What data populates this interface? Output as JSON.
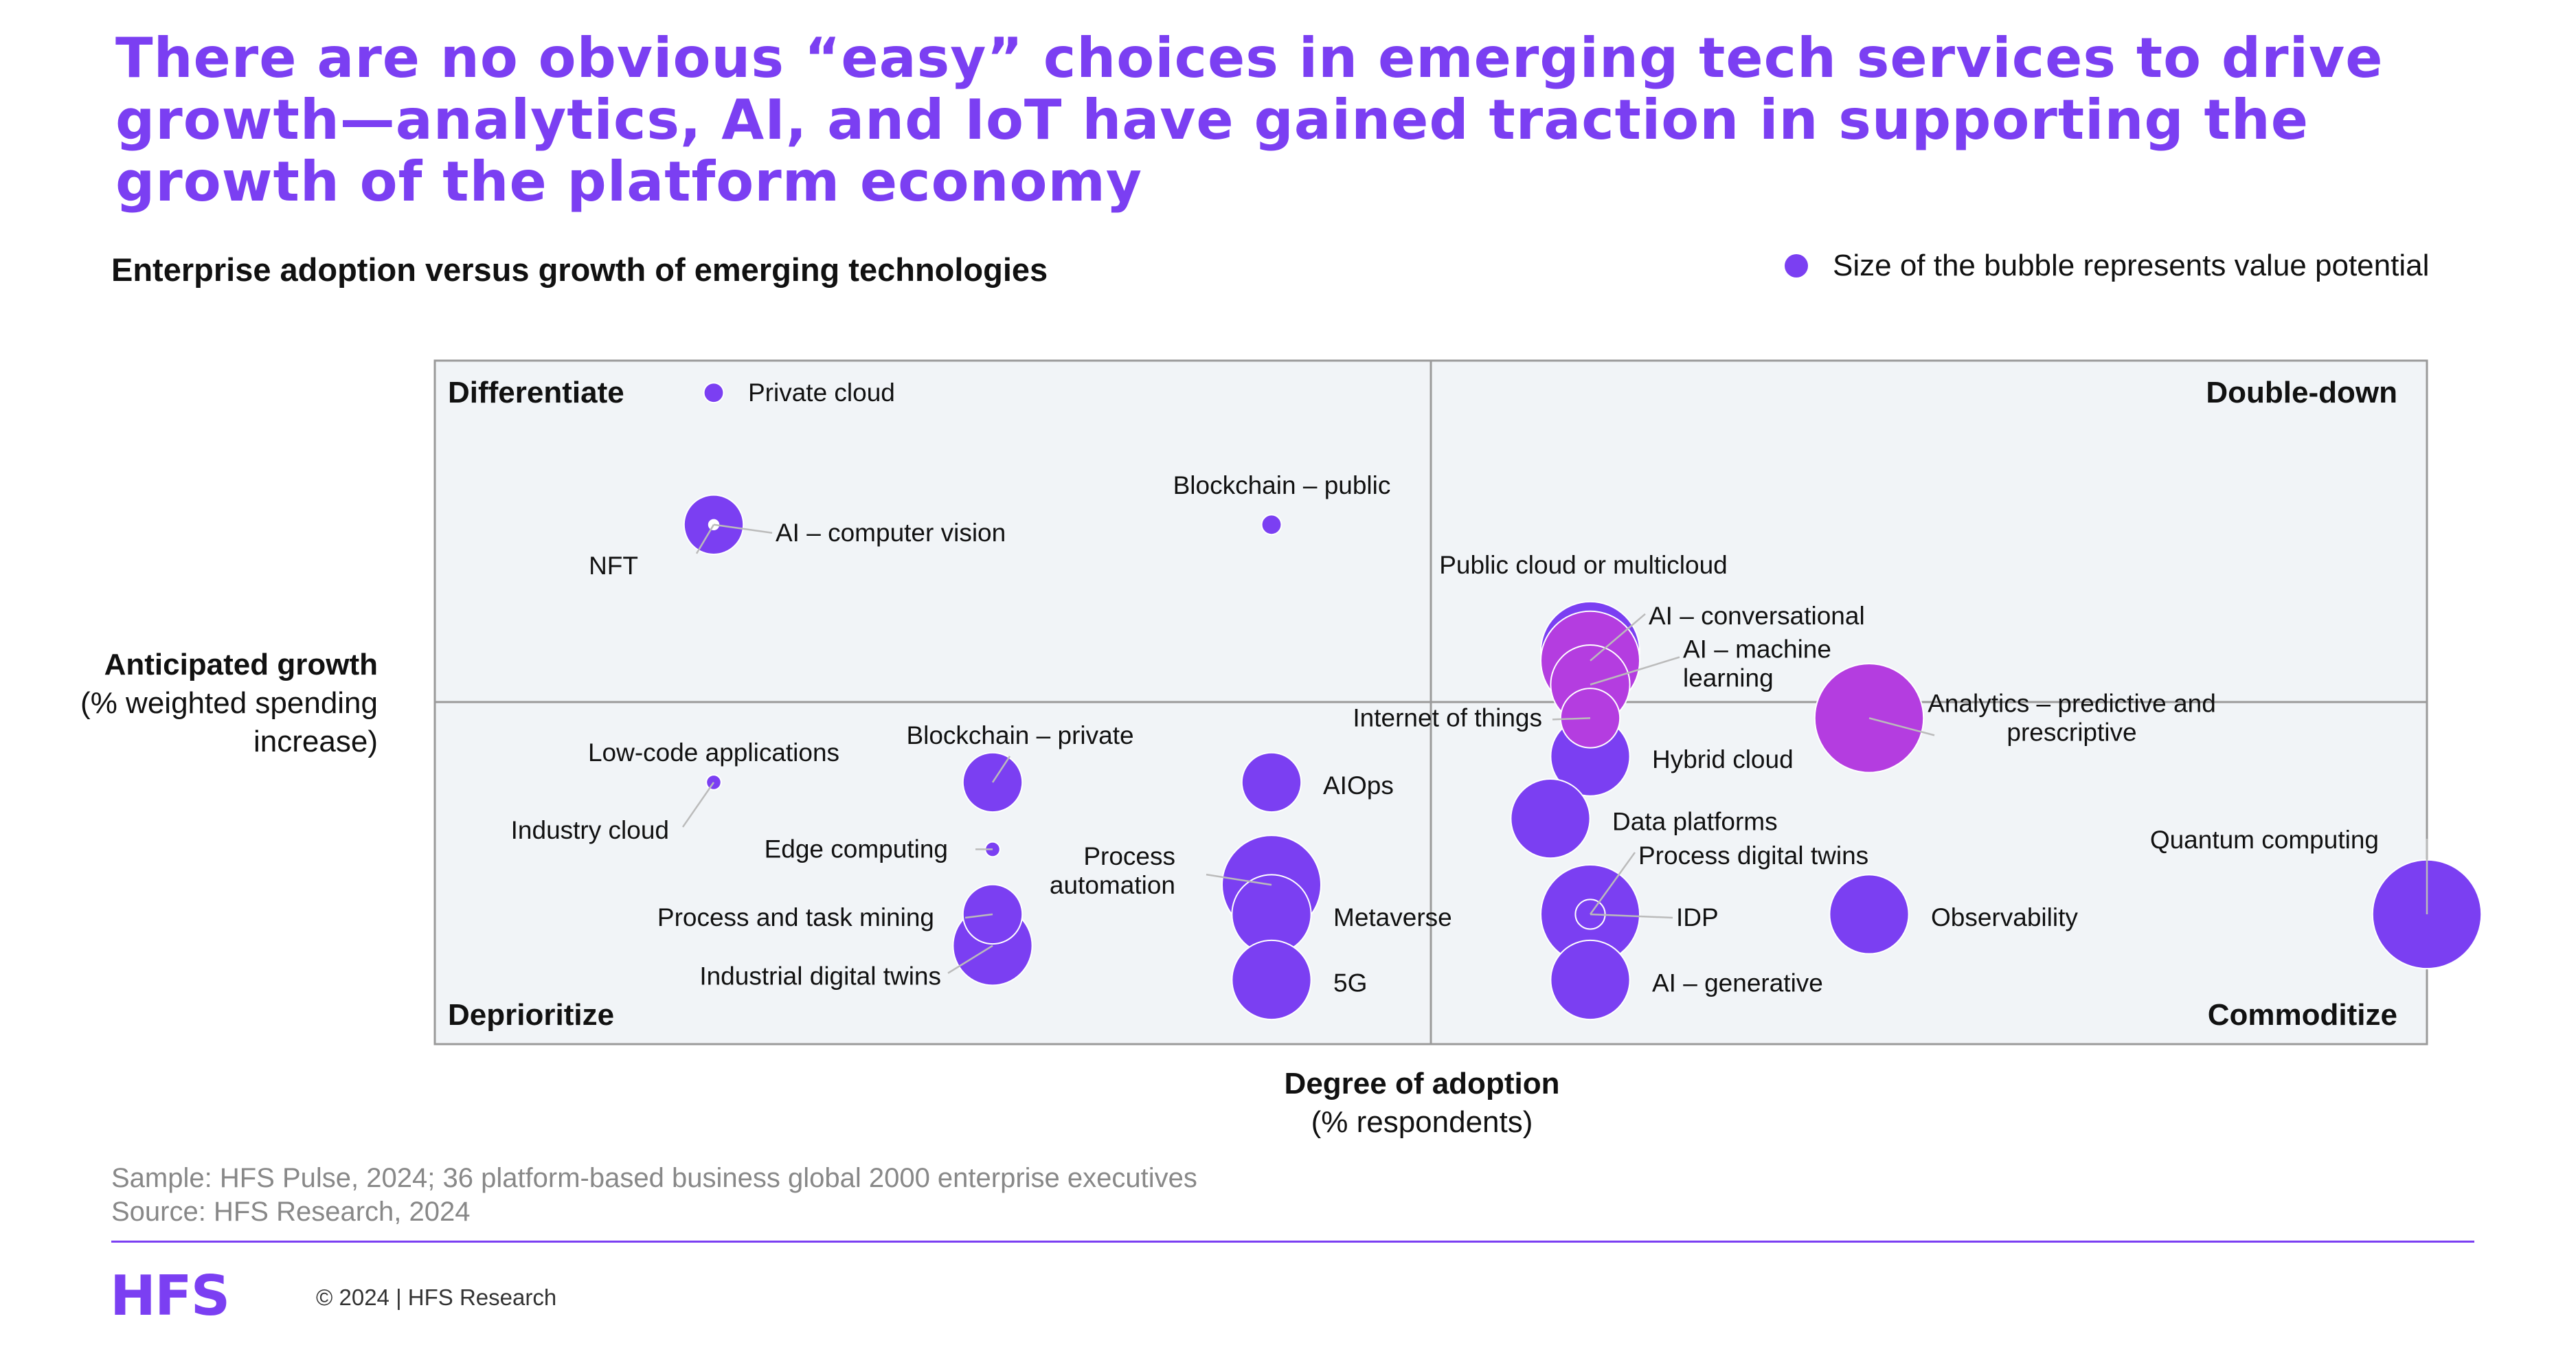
{
  "header": {
    "title": "There are no obvious “easy” choices in emerging tech services to drive growth—analytics, AI, and IoT have gained traction in supporting the growth of the platform economy",
    "subtitle": "Enterprise adoption versus growth of emerging technologies",
    "legend_text": "Size of the bubble represents value potential"
  },
  "axes": {
    "y_title": "Anticipated growth",
    "y_subtitle": "(% weighted spending increase)",
    "x_title": "Degree of adoption",
    "x_subtitle": "(% respondents)"
  },
  "footer": {
    "sample": "Sample: HFS Pulse, 2024; 36 platform-based business global 2000 enterprise executives",
    "source": "Source: HFS Research, 2024",
    "logo": "HFS",
    "copyright": "© 2024 | HFS Research"
  },
  "colors": {
    "accent": "#7b3ff2",
    "highlight": "#b43de0",
    "plot_bg": "#f1f4f7",
    "border": "#9a9a9a"
  },
  "chart_data": {
    "type": "scatter",
    "bubble": true,
    "xlim": [
      0,
      100
    ],
    "ylim": [
      0,
      100
    ],
    "grid": false,
    "quadrant_split": {
      "x": 50,
      "y": 50
    },
    "quadrants": {
      "top_left": "Differentiate",
      "top_right": "Double-down",
      "bottom_left": "Deprioritize",
      "bottom_right": "Commoditize"
    },
    "points": [
      {
        "label": "Private cloud",
        "x": 14.0,
        "y": 95.3,
        "size": 4,
        "color": "#7b3ff2"
      },
      {
        "label": "NFT",
        "x": 14.0,
        "y": 76.0,
        "size": 2,
        "color": "#ffffff"
      },
      {
        "label": "AI – computer vision",
        "x": 14.0,
        "y": 76.0,
        "size": 12,
        "color": "#7b3ff2"
      },
      {
        "label": "Blockchain – public",
        "x": 42.0,
        "y": 76.0,
        "size": 4,
        "color": "#7b3ff2"
      },
      {
        "label": "Public cloud or multicloud",
        "x": 58.0,
        "y": 57.5,
        "size": 20,
        "color": "#7b3ff2"
      },
      {
        "label": "AI – conversational",
        "x": 58.0,
        "y": 56.1,
        "size": 20,
        "color": "#b43de0"
      },
      {
        "label": "AI – machine learning",
        "x": 58.0,
        "y": 52.6,
        "size": 16,
        "color": "#b43de0"
      },
      {
        "label": "Internet of things",
        "x": 58.0,
        "y": 47.7,
        "size": 12,
        "color": "#b43de0"
      },
      {
        "label": "Hybrid cloud",
        "x": 58.0,
        "y": 42.1,
        "size": 16,
        "color": "#7b3ff2"
      },
      {
        "label": "Analytics – predictive and prescriptive",
        "x": 72.0,
        "y": 47.7,
        "size": 22,
        "color": "#b43de0"
      },
      {
        "label": "Low-code applications",
        "x": 14.0,
        "y": 38.3,
        "size": 3,
        "color": "#7b3ff2"
      },
      {
        "label": "Industry cloud",
        "x": 14.0,
        "y": 38.3,
        "size": 3,
        "color": "#7b3ff2"
      },
      {
        "label": "Blockchain – private",
        "x": 28.0,
        "y": 38.3,
        "size": 12,
        "color": "#7b3ff2"
      },
      {
        "label": "AIOps",
        "x": 42.0,
        "y": 38.3,
        "size": 12,
        "color": "#7b3ff2"
      },
      {
        "label": "Data platforms",
        "x": 56.0,
        "y": 33.0,
        "size": 16,
        "color": "#7b3ff2"
      },
      {
        "label": "Edge computing",
        "x": 28.0,
        "y": 28.5,
        "size": 3,
        "color": "#7b3ff2"
      },
      {
        "label": "Process automation",
        "x": 42.0,
        "y": 23.3,
        "size": 20,
        "color": "#7b3ff2"
      },
      {
        "label": "Metaverse",
        "x": 42.0,
        "y": 19.0,
        "size": 16,
        "color": "#7b3ff2"
      },
      {
        "label": "Process digital twins",
        "x": 58.0,
        "y": 19.0,
        "size": 20,
        "color": "#7b3ff2"
      },
      {
        "label": "IDP",
        "x": 58.0,
        "y": 19.0,
        "size": 6,
        "color": "#7b3ff2"
      },
      {
        "label": "Observability",
        "x": 72.0,
        "y": 19.0,
        "size": 16,
        "color": "#7b3ff2"
      },
      {
        "label": "Quantum computing",
        "x": 100.0,
        "y": 19.0,
        "size": 22,
        "color": "#7b3ff2"
      },
      {
        "label": "Process and task mining",
        "x": 28.0,
        "y": 19.0,
        "size": 12,
        "color": "#7b3ff2"
      },
      {
        "label": "Industrial digital twins",
        "x": 28.0,
        "y": 14.4,
        "size": 16,
        "color": "#7b3ff2"
      },
      {
        "label": "5G",
        "x": 42.0,
        "y": 9.4,
        "size": 16,
        "color": "#7b3ff2"
      },
      {
        "label": "AI – generative",
        "x": 58.0,
        "y": 9.4,
        "size": 16,
        "color": "#7b3ff2"
      }
    ]
  }
}
